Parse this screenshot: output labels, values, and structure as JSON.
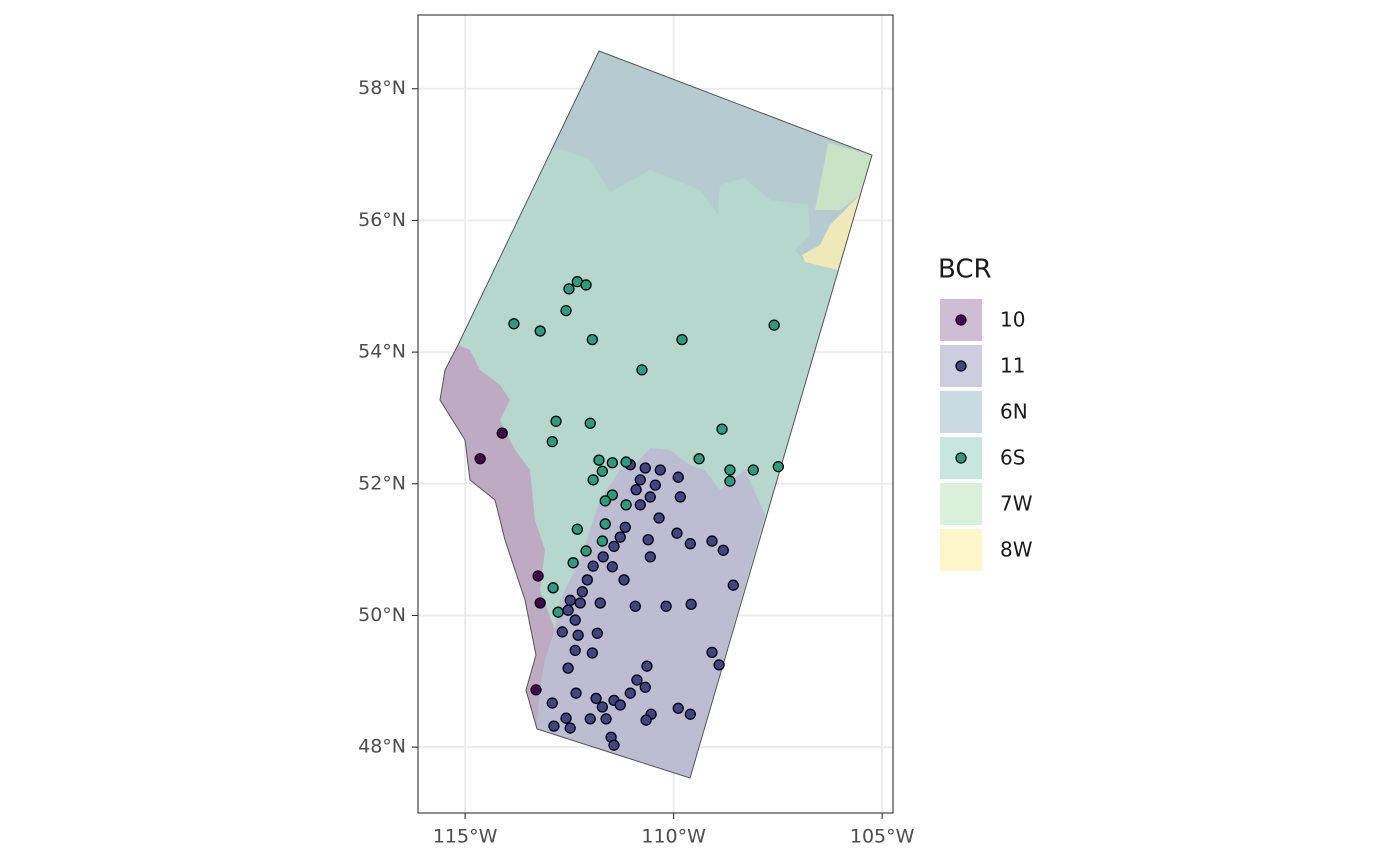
{
  "chart_data": {
    "type": "scatter",
    "xlim": [
      -116.13,
      -104.74
    ],
    "ylim": [
      47.0,
      59.12
    ],
    "xticks": [
      {
        "value": -115,
        "label": "115°W"
      },
      {
        "value": -110,
        "label": "110°W"
      },
      {
        "value": -105,
        "label": "105°W"
      }
    ],
    "yticks": [
      {
        "value": 48,
        "label": "48°N"
      },
      {
        "value": 50,
        "label": "50°N"
      },
      {
        "value": 52,
        "label": "52°N"
      },
      {
        "value": 54,
        "label": "54°N"
      },
      {
        "value": 56,
        "label": "56°N"
      },
      {
        "value": 58,
        "label": "58°N"
      }
    ],
    "grid": true,
    "legend": {
      "title": "BCR",
      "position": "right"
    },
    "series": [
      {
        "name": "10",
        "fill": "#d0bcd5",
        "color": "#440154",
        "x": [
          -114.11,
          -114.64,
          -113.25,
          -113.2,
          -113.3
        ],
        "y": [
          52.77,
          52.38,
          50.6,
          50.19,
          48.87
        ]
      },
      {
        "name": "11",
        "fill": "#cdcde0",
        "color": "#414487",
        "x": [
          -111.04,
          -110.68,
          -110.32,
          -110.8,
          -110.44,
          -110.9,
          -110.56,
          -109.89,
          -110.8,
          -109.84,
          -110.35,
          -109.92,
          -111.16,
          -111.28,
          -111.43,
          -111.69,
          -111.93,
          -112.07,
          -112.19,
          -112.48,
          -112.24,
          -111.76,
          -112.53,
          -112.36,
          -112.29,
          -112.67,
          -112.36,
          -112.53,
          -111.83,
          -111.95,
          -111.47,
          -111.19,
          -110.61,
          -110.56,
          -109.6,
          -109.08,
          -108.81,
          -108.57,
          -109.58,
          -110.18,
          -110.92,
          -109.08,
          -108.91,
          -110.64,
          -110.88,
          -110.68,
          -111.04,
          -111.43,
          -111.86,
          -111.71,
          -111.28,
          -110.54,
          -109.89,
          -109.6,
          -111.62,
          -112.0,
          -112.58,
          -112.87,
          -112.91,
          -112.34,
          -111.5,
          -111.43,
          -110.66,
          -112.48
        ],
        "y": [
          52.29,
          52.24,
          52.21,
          52.06,
          51.98,
          51.91,
          51.8,
          52.1,
          51.68,
          51.8,
          51.48,
          51.25,
          51.34,
          51.19,
          51.05,
          50.89,
          50.75,
          50.54,
          50.36,
          50.23,
          50.19,
          50.19,
          50.08,
          49.93,
          49.7,
          49.75,
          49.47,
          49.2,
          49.73,
          49.43,
          50.74,
          50.54,
          51.15,
          50.89,
          51.09,
          51.13,
          50.99,
          50.46,
          50.17,
          50.14,
          50.14,
          49.44,
          49.25,
          49.23,
          49.02,
          48.91,
          48.82,
          48.71,
          48.74,
          48.61,
          48.64,
          48.5,
          48.59,
          48.5,
          48.43,
          48.43,
          48.44,
          48.32,
          48.67,
          48.82,
          48.15,
          48.03,
          48.41,
          48.29
        ]
      },
      {
        "name": "6N",
        "fill": "#c8dadf"
      },
      {
        "name": "6S",
        "fill": "#c6e6df",
        "color": "#2a9d80",
        "x": [
          -112.31,
          -112.51,
          -112.1,
          -113.83,
          -113.2,
          -112.58,
          -111.95,
          -110.76,
          -109.8,
          -107.59,
          -112.82,
          -112.0,
          -112.91,
          -108.84,
          -109.39,
          -108.65,
          -107.49,
          -108.09,
          -108.65,
          -111.79,
          -111.47,
          -111.14,
          -111.71,
          -111.93,
          -111.47,
          -111.64,
          -111.14,
          -112.31,
          -111.64,
          -111.71,
          -112.1,
          -112.41,
          -112.89,
          -112.77
        ],
        "y": [
          55.07,
          54.96,
          55.02,
          54.43,
          54.32,
          54.63,
          54.19,
          53.73,
          54.19,
          54.41,
          52.95,
          52.92,
          52.64,
          52.83,
          52.38,
          52.21,
          52.26,
          52.21,
          52.04,
          52.36,
          52.32,
          52.33,
          52.19,
          52.06,
          51.83,
          51.74,
          51.68,
          51.31,
          51.39,
          51.13,
          50.98,
          50.8,
          50.42,
          50.05
        ]
      },
      {
        "name": "7W",
        "fill": "#dbf0d8"
      },
      {
        "name": "8W",
        "fill": "#fdf6cc"
      }
    ]
  }
}
